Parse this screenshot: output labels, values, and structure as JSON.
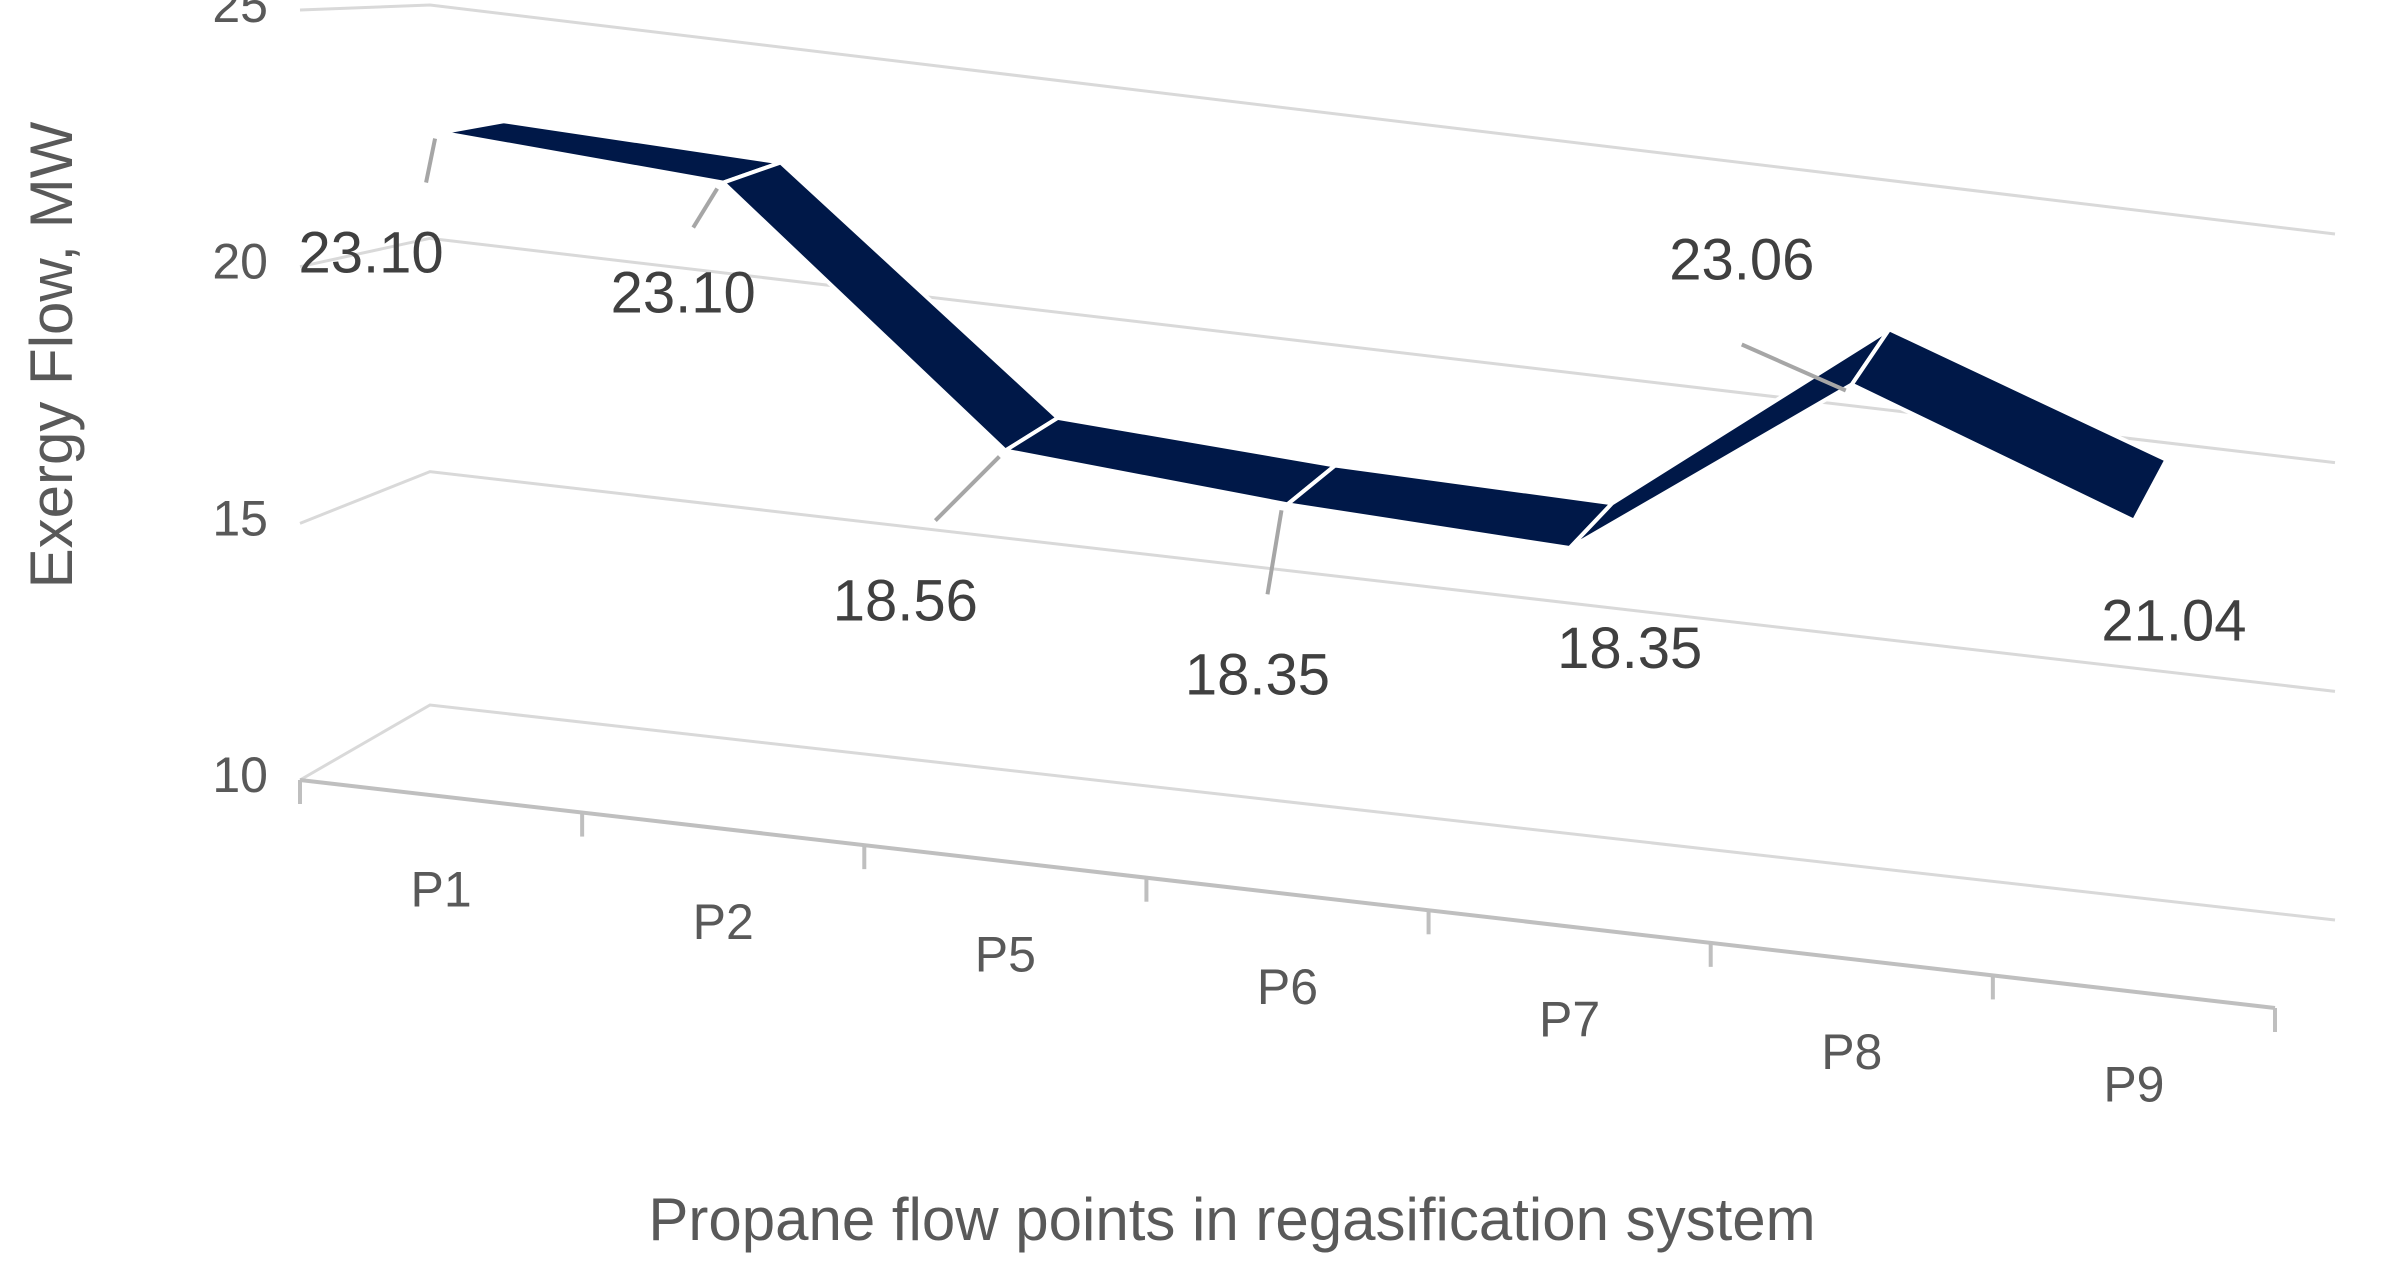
{
  "chart_data": {
    "type": "line",
    "style": "3d-ribbon",
    "categories": [
      "P1",
      "P2",
      "P5",
      "P6",
      "P7",
      "P8",
      "P9"
    ],
    "series": [
      {
        "values": [
          23.1,
          23.1,
          18.56,
          18.35,
          18.35,
          23.06,
          21.04
        ],
        "data_labels": [
          "23.10",
          "23.10",
          "18.56",
          "18.35",
          "18.35",
          "23.06",
          "21.04"
        ],
        "color": "#001848"
      }
    ],
    "title": "",
    "xlabel": "Propane flow points in regasification system",
    "ylabel": "Exergy Flow, MW",
    "y_ticks": [
      "10",
      "15",
      "20",
      "25"
    ],
    "ylim": [
      10,
      25
    ],
    "grid": true,
    "legend": "none",
    "colors": {
      "series": "#001848",
      "gridline": "#d9d9d9",
      "axis": "#bfbfbf",
      "leader": "#a6a6a6",
      "text": "#595959"
    }
  }
}
